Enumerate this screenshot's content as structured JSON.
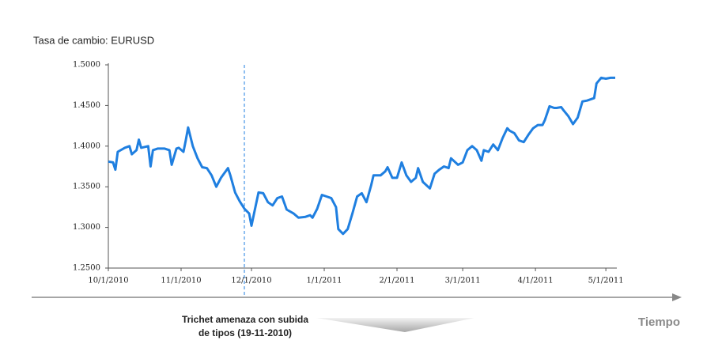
{
  "chart_data": {
    "type": "line",
    "title": "Tasa de cambio: EURUSD",
    "annotation": "Trichet amenaza con subida de tipos (19-11-2010)",
    "x_label": "Tiempo",
    "xlim": [
      "2010-10-01",
      "2011-05-05"
    ],
    "xticks": [
      {
        "value": "2010-10-01",
        "label": "10/1/2010"
      },
      {
        "value": "2010-11-01",
        "label": "11/1/2010"
      },
      {
        "value": "2010-12-01",
        "label": "12/1/2010"
      },
      {
        "value": "2011-01-01",
        "label": "1/1/2011"
      },
      {
        "value": "2011-02-01",
        "label": "2/1/2011"
      },
      {
        "value": "2011-03-01",
        "label": "3/1/2011"
      },
      {
        "value": "2011-04-01",
        "label": "4/1/2011"
      },
      {
        "value": "2011-05-01",
        "label": "5/1/2011"
      }
    ],
    "ylim": [
      1.25,
      1.5
    ],
    "yticks": [
      {
        "value": 1.25,
        "label": "1.2500"
      },
      {
        "value": 1.3,
        "label": "1.3000"
      },
      {
        "value": 1.35,
        "label": "1.3500"
      },
      {
        "value": 1.4,
        "label": "1.4000"
      },
      {
        "value": 1.45,
        "label": "1.4500"
      },
      {
        "value": 1.5,
        "label": "1.5000"
      }
    ],
    "grid": false,
    "x": [
      "2010-10-01",
      "2010-10-03",
      "2010-10-04",
      "2010-10-05",
      "2010-10-08",
      "2010-10-10",
      "2010-10-11",
      "2010-10-13",
      "2010-10-14",
      "2010-10-15",
      "2010-10-18",
      "2010-10-19",
      "2010-10-20",
      "2010-10-22",
      "2010-10-25",
      "2010-10-27",
      "2010-10-28",
      "2010-10-30",
      "2010-10-31",
      "2010-11-02",
      "2010-11-03",
      "2010-11-04",
      "2010-11-06",
      "2010-11-08",
      "2010-11-10",
      "2010-11-12",
      "2010-11-14",
      "2010-11-16",
      "2010-11-18",
      "2010-11-21",
      "2010-11-22",
      "2010-11-24",
      "2010-11-26",
      "2010-11-28",
      "2010-11-30",
      "2010-12-01",
      "2010-12-02",
      "2010-12-04",
      "2010-12-06",
      "2010-12-08",
      "2010-12-10",
      "2010-12-12",
      "2010-12-14",
      "2010-12-16",
      "2010-12-19",
      "2010-12-21",
      "2010-12-24",
      "2010-12-26",
      "2010-12-27",
      "2010-12-29",
      "2010-12-31",
      "2011-01-02",
      "2011-01-04",
      "2011-01-06",
      "2011-01-07",
      "2011-01-09",
      "2011-01-11",
      "2011-01-13",
      "2011-01-15",
      "2011-01-17",
      "2011-01-19",
      "2011-01-21",
      "2011-01-22",
      "2011-01-25",
      "2011-01-27",
      "2011-01-28",
      "2011-01-30",
      "2011-02-01",
      "2011-02-03",
      "2011-02-05",
      "2011-02-07",
      "2011-02-09",
      "2011-02-10",
      "2011-02-12",
      "2011-02-15",
      "2011-02-17",
      "2011-02-19",
      "2011-02-21",
      "2011-02-23",
      "2011-02-24",
      "2011-02-27",
      "2011-03-01",
      "2011-03-03",
      "2011-03-05",
      "2011-03-07",
      "2011-03-09",
      "2011-03-10",
      "2011-03-12",
      "2011-03-14",
      "2011-03-16",
      "2011-03-18",
      "2011-03-20",
      "2011-03-21",
      "2011-03-23",
      "2011-03-25",
      "2011-03-27",
      "2011-03-29",
      "2011-03-31",
      "2011-04-02",
      "2011-04-04",
      "2011-04-05",
      "2011-04-07",
      "2011-04-09",
      "2011-04-10",
      "2011-04-12",
      "2011-04-13",
      "2011-04-15",
      "2011-04-17",
      "2011-04-19",
      "2011-04-21",
      "2011-04-23",
      "2011-04-26",
      "2011-04-27",
      "2011-04-29",
      "2011-05-01",
      "2011-05-03",
      "2011-05-05"
    ],
    "series": [
      {
        "name": "EURUSD",
        "color": "#1f7fe0",
        "values": [
          1.381,
          1.38,
          1.371,
          1.393,
          1.398,
          1.4,
          1.39,
          1.395,
          1.408,
          1.398,
          1.4,
          1.375,
          1.395,
          1.397,
          1.397,
          1.395,
          1.377,
          1.397,
          1.398,
          1.393,
          1.407,
          1.423,
          1.4,
          1.385,
          1.374,
          1.373,
          1.364,
          1.35,
          1.361,
          1.373,
          1.364,
          1.343,
          1.332,
          1.323,
          1.317,
          1.302,
          1.316,
          1.343,
          1.342,
          1.331,
          1.327,
          1.336,
          1.338,
          1.322,
          1.317,
          1.312,
          1.313,
          1.315,
          1.312,
          1.323,
          1.34,
          1.338,
          1.336,
          1.325,
          1.298,
          1.292,
          1.298,
          1.317,
          1.338,
          1.342,
          1.331,
          1.352,
          1.364,
          1.364,
          1.369,
          1.374,
          1.361,
          1.361,
          1.38,
          1.364,
          1.356,
          1.361,
          1.373,
          1.356,
          1.348,
          1.366,
          1.371,
          1.375,
          1.373,
          1.385,
          1.377,
          1.38,
          1.395,
          1.4,
          1.395,
          1.382,
          1.395,
          1.393,
          1.402,
          1.395,
          1.41,
          1.422,
          1.419,
          1.416,
          1.407,
          1.405,
          1.414,
          1.422,
          1.426,
          1.426,
          1.432,
          1.449,
          1.447,
          1.447,
          1.448,
          1.444,
          1.437,
          1.427,
          1.435,
          1.455,
          1.456,
          1.459,
          1.477,
          1.484,
          1.483,
          1.484,
          1.484
        ]
      }
    ]
  }
}
